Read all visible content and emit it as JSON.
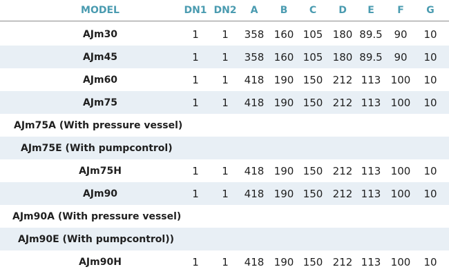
{
  "headers": {
    "model": "MODEL",
    "dn1": "DN1",
    "dn2": "DN2",
    "a": "A",
    "b": "B",
    "c": "C",
    "d": "D",
    "e": "E",
    "f": "F",
    "g": "G"
  },
  "rows": [
    {
      "model": "AJm30",
      "dn1": "1",
      "dn2": "1",
      "a": "358",
      "b": "160",
      "c": "105",
      "d": "180",
      "e": "89.5",
      "f": "90",
      "g": "10"
    },
    {
      "model": "AJm45",
      "dn1": "1",
      "dn2": "1",
      "a": "358",
      "b": "160",
      "c": "105",
      "d": "180",
      "e": "89.5",
      "f": "90",
      "g": "10"
    },
    {
      "model": "AJm60",
      "dn1": "1",
      "dn2": "1",
      "a": "418",
      "b": "190",
      "c": "150",
      "d": "212",
      "e": "113",
      "f": "100",
      "g": "10"
    },
    {
      "model": "AJm75",
      "dn1": "1",
      "dn2": "1",
      "a": "418",
      "b": "190",
      "c": "150",
      "d": "212",
      "e": "113",
      "f": "100",
      "g": "10"
    },
    {
      "model": "AJm75A (With pressure vessel)"
    },
    {
      "model": "AJm75E (With pumpcontrol)"
    },
    {
      "model": "AJm75H",
      "dn1": "1",
      "dn2": "1",
      "a": "418",
      "b": "190",
      "c": "150",
      "d": "212",
      "e": "113",
      "f": "100",
      "g": "10"
    },
    {
      "model": "AJm90",
      "dn1": "1",
      "dn2": "1",
      "a": "418",
      "b": "190",
      "c": "150",
      "d": "212",
      "e": "113",
      "f": "100",
      "g": "10"
    },
    {
      "model": "AJm90A (With pressure vessel)"
    },
    {
      "model": "AJm90E (With pumpcontrol))"
    },
    {
      "model": "AJm90H",
      "dn1": "1",
      "dn2": "1",
      "a": "418",
      "b": "190",
      "c": "150",
      "d": "212",
      "e": "113",
      "f": "100",
      "g": "10"
    }
  ],
  "colors": {
    "header_text": "#4a9bb0",
    "shaded_row": "#e8eff5",
    "body_text": "#1f1f1f"
  }
}
